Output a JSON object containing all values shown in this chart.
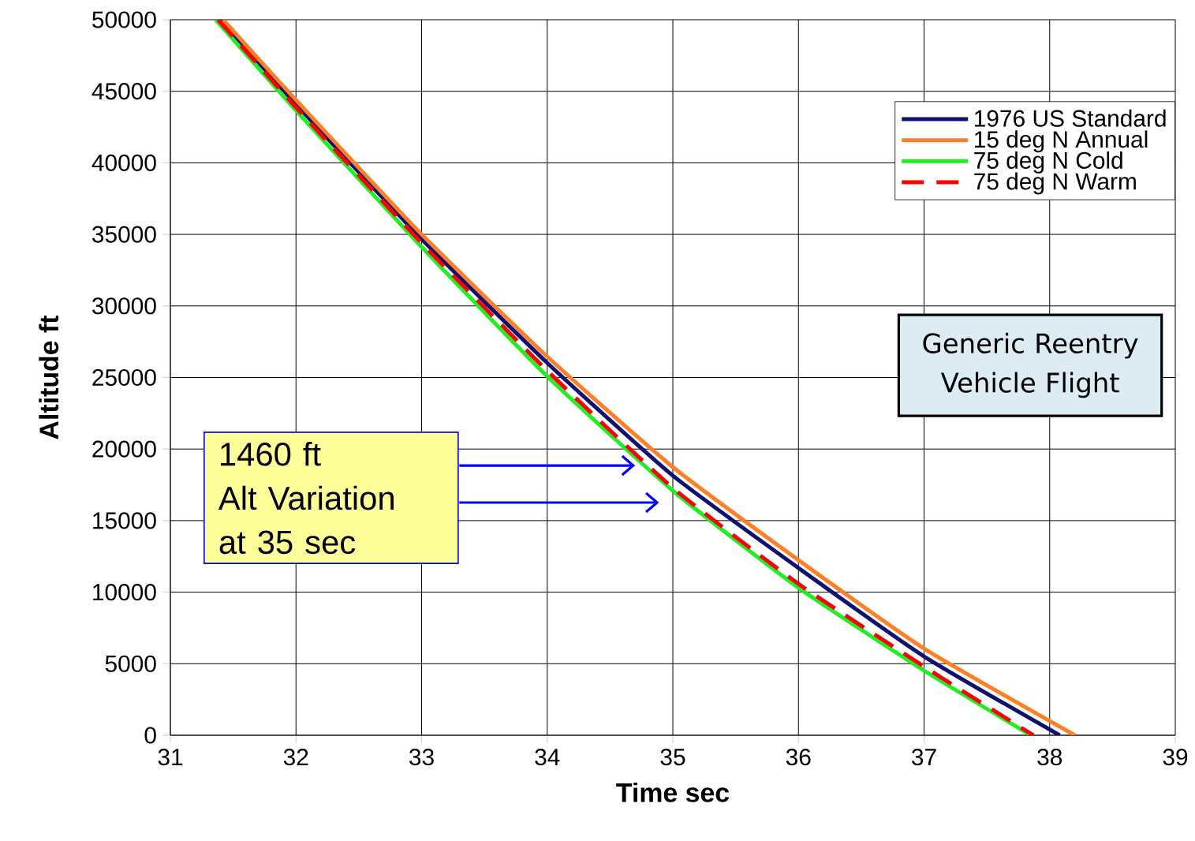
{
  "chart_data": {
    "type": "line",
    "xlabel": "Time sec",
    "ylabel": "Altitude  ft",
    "xlim": [
      31,
      39
    ],
    "xticks": [
      31,
      32,
      33,
      34,
      35,
      36,
      37,
      38,
      39
    ],
    "ylim": [
      0,
      50000
    ],
    "yticks": [
      0,
      5000,
      10000,
      15000,
      20000,
      25000,
      30000,
      35000,
      40000,
      45000,
      50000
    ],
    "grid": true,
    "legend": "top right",
    "series": [
      {
        "name": "1976 US Standard",
        "color": "#101070",
        "line_style": "solid",
        "x": [
          31.4,
          32,
          33,
          34,
          35,
          36,
          37,
          38.08
        ],
        "values": [
          50000,
          44100,
          34670,
          26020,
          18140,
          11690,
          5510,
          0
        ]
      },
      {
        "name": "15 deg N Annual",
        "color": "#ff7f27",
        "line_style": "solid",
        "x": [
          31.42,
          32,
          33,
          34,
          35,
          36,
          37,
          38.2
        ],
        "values": [
          50000,
          44380,
          35000,
          26460,
          18740,
          12240,
          6060,
          0
        ]
      },
      {
        "name": "75 deg N Cold",
        "color": "#22ee22",
        "line_style": "solid",
        "x": [
          31.36,
          32,
          33,
          34,
          35,
          36,
          37,
          37.85
        ],
        "values": [
          50000,
          43660,
          34120,
          25080,
          17090,
          10310,
          4520,
          0
        ]
      },
      {
        "name": "75 deg N Warm",
        "color": "#ff0000",
        "line_style": "dashed",
        "x": [
          31.38,
          32,
          33,
          34,
          35,
          36,
          37,
          37.87
        ],
        "values": [
          50000,
          43880,
          34400,
          25470,
          17280,
          10580,
          4800,
          0
        ]
      }
    ],
    "annotations": [
      "1460 ft",
      "Alt Variation",
      "at 35 sec",
      "Generic Reentry Vehicle Flight"
    ]
  }
}
